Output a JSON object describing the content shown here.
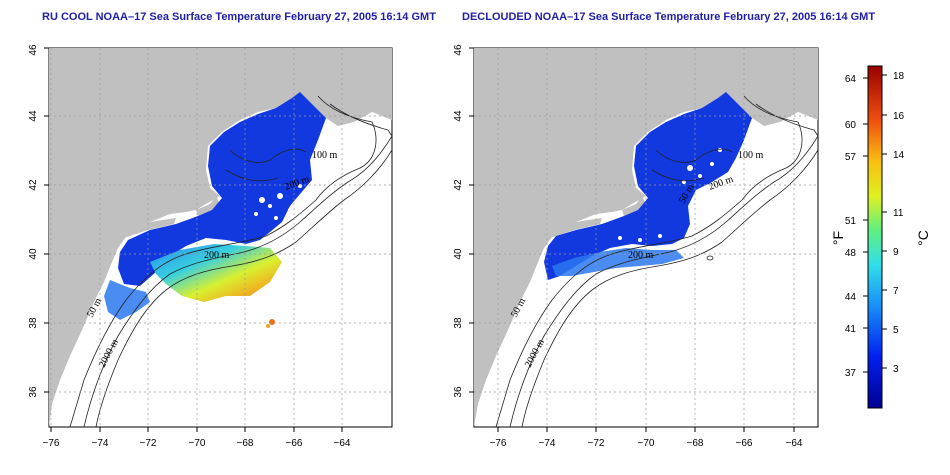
{
  "panels": [
    {
      "id": "left",
      "title": "RU COOL NOAA–17 Sea Surface Temperature February 27, 2005 16:14 GMT",
      "isobath_labels": [
        "100 m",
        "200 m",
        "200 m",
        "50 m",
        "2000 m"
      ]
    },
    {
      "id": "right",
      "title": "DECLOUDED NOAA–17 Sea Surface Temperature February 27, 2005 16:14 GMT",
      "isobath_labels": [
        "100 m",
        "200 m",
        "50 m",
        "200 m",
        "50 m",
        "2000 m"
      ]
    }
  ],
  "axes": {
    "x_ticks": [
      "−76",
      "−74",
      "−72",
      "−70",
      "−68",
      "−66",
      "−64"
    ],
    "y_ticks": [
      "36",
      "38",
      "40",
      "42",
      "44",
      "46"
    ]
  },
  "colorbar": {
    "fahrenheit_label": "°F",
    "celsius_label": "°C",
    "fahrenheit_ticks": [
      "64",
      "60",
      "57",
      "51",
      "48",
      "44",
      "41",
      "37"
    ],
    "celsius_ticks": [
      "18",
      "16",
      "14",
      "11",
      "9",
      "7",
      "5",
      "3"
    ]
  },
  "colors": {
    "land": "#c0c0c0",
    "cold_water": "#1238e0",
    "warm_water": "#f0e030",
    "title": "#1f1fa8"
  }
}
